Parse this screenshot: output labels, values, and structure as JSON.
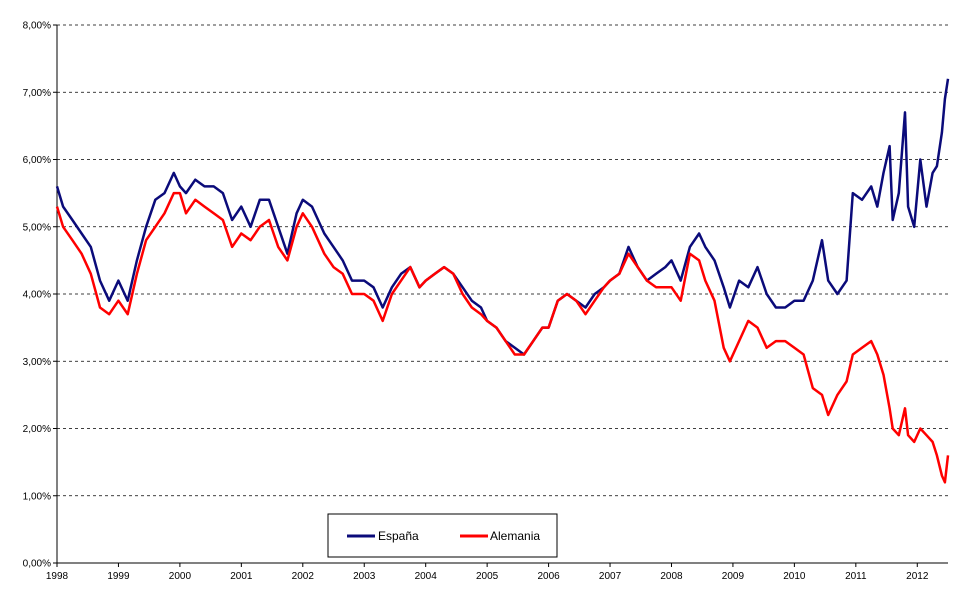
{
  "chart_data": {
    "type": "line",
    "title": "",
    "xlabel": "",
    "ylabel": "",
    "xlim": [
      1998,
      2012.5
    ],
    "ylim": [
      0,
      8
    ],
    "x_ticks": [
      "1998",
      "1999",
      "2000",
      "2001",
      "2002",
      "2003",
      "2004",
      "2005",
      "2006",
      "2007",
      "2008",
      "2009",
      "2010",
      "2011",
      "2012"
    ],
    "y_ticks": [
      "0,00%",
      "1,00%",
      "2,00%",
      "3,00%",
      "4,00%",
      "5,00%",
      "6,00%",
      "7,00%",
      "8,00%"
    ],
    "grid": "horizontal dashed",
    "legend": "bottom-center",
    "series": [
      {
        "name": "España",
        "color": "#0b0b7a",
        "x": [
          1998.0,
          1998.1,
          1998.25,
          1998.4,
          1998.55,
          1998.7,
          1998.85,
          1999.0,
          1999.15,
          1999.3,
          1999.45,
          1999.6,
          1999.75,
          1999.9,
          2000.0,
          2000.1,
          2000.25,
          2000.4,
          2000.55,
          2000.7,
          2000.85,
          2001.0,
          2001.15,
          2001.3,
          2001.45,
          2001.6,
          2001.75,
          2001.9,
          2002.0,
          2002.15,
          2002.35,
          2002.5,
          2002.65,
          2002.8,
          2003.0,
          2003.15,
          2003.3,
          2003.45,
          2003.6,
          2003.75,
          2003.9,
          2004.0,
          2004.15,
          2004.3,
          2004.45,
          2004.6,
          2004.75,
          2004.9,
          2005.0,
          2005.15,
          2005.3,
          2005.45,
          2005.6,
          2005.75,
          2005.9,
          2006.0,
          2006.15,
          2006.3,
          2006.45,
          2006.6,
          2006.75,
          2006.9,
          2007.0,
          2007.15,
          2007.3,
          2007.45,
          2007.6,
          2007.75,
          2007.9,
          2008.0,
          2008.15,
          2008.3,
          2008.45,
          2008.55,
          2008.7,
          2008.85,
          2008.95,
          2009.1,
          2009.25,
          2009.4,
          2009.55,
          2009.7,
          2009.85,
          2010.0,
          2010.15,
          2010.3,
          2010.45,
          2010.55,
          2010.7,
          2010.85,
          2010.95,
          2011.1,
          2011.25,
          2011.35,
          2011.45,
          2011.55,
          2011.6,
          2011.7,
          2011.8,
          2011.85,
          2011.95,
          2012.05,
          2012.15,
          2012.25,
          2012.32,
          2012.4,
          2012.45,
          2012.5
        ],
        "values": [
          5.6,
          5.3,
          5.1,
          4.9,
          4.7,
          4.2,
          3.9,
          4.2,
          3.9,
          4.5,
          5.0,
          5.4,
          5.5,
          5.8,
          5.6,
          5.5,
          5.7,
          5.6,
          5.6,
          5.5,
          5.1,
          5.3,
          5.0,
          5.4,
          5.4,
          5.0,
          4.6,
          5.2,
          5.4,
          5.3,
          4.9,
          4.7,
          4.5,
          4.2,
          4.2,
          4.1,
          3.8,
          4.1,
          4.3,
          4.4,
          4.1,
          4.2,
          4.3,
          4.4,
          4.3,
          4.1,
          3.9,
          3.8,
          3.6,
          3.5,
          3.3,
          3.2,
          3.1,
          3.3,
          3.5,
          3.5,
          3.9,
          4.0,
          3.9,
          3.8,
          4.0,
          4.1,
          4.2,
          4.3,
          4.7,
          4.4,
          4.2,
          4.3,
          4.4,
          4.5,
          4.2,
          4.7,
          4.9,
          4.7,
          4.5,
          4.1,
          3.8,
          4.2,
          4.1,
          4.4,
          4.0,
          3.8,
          3.8,
          3.9,
          3.9,
          4.2,
          4.8,
          4.2,
          4.0,
          4.2,
          5.5,
          5.4,
          5.6,
          5.3,
          5.8,
          6.2,
          5.1,
          5.5,
          6.7,
          5.3,
          5.0,
          6.0,
          5.3,
          5.8,
          5.9,
          6.4,
          6.9,
          7.2
        ]
      },
      {
        "name": "Alemania",
        "color": "#ff0000",
        "x": [
          1998.0,
          1998.1,
          1998.25,
          1998.4,
          1998.55,
          1998.7,
          1998.85,
          1999.0,
          1999.15,
          1999.3,
          1999.45,
          1999.6,
          1999.75,
          1999.9,
          2000.0,
          2000.1,
          2000.25,
          2000.4,
          2000.55,
          2000.7,
          2000.85,
          2001.0,
          2001.15,
          2001.3,
          2001.45,
          2001.6,
          2001.75,
          2001.9,
          2002.0,
          2002.15,
          2002.35,
          2002.5,
          2002.65,
          2002.8,
          2003.0,
          2003.15,
          2003.3,
          2003.45,
          2003.6,
          2003.75,
          2003.9,
          2004.0,
          2004.15,
          2004.3,
          2004.45,
          2004.6,
          2004.75,
          2004.9,
          2005.0,
          2005.15,
          2005.3,
          2005.45,
          2005.6,
          2005.75,
          2005.9,
          2006.0,
          2006.15,
          2006.3,
          2006.45,
          2006.6,
          2006.75,
          2006.9,
          2007.0,
          2007.15,
          2007.3,
          2007.45,
          2007.6,
          2007.75,
          2007.9,
          2008.0,
          2008.15,
          2008.3,
          2008.45,
          2008.55,
          2008.7,
          2008.85,
          2008.95,
          2009.1,
          2009.25,
          2009.4,
          2009.55,
          2009.7,
          2009.85,
          2010.0,
          2010.15,
          2010.3,
          2010.45,
          2010.55,
          2010.7,
          2010.85,
          2010.95,
          2011.1,
          2011.25,
          2011.35,
          2011.45,
          2011.55,
          2011.6,
          2011.7,
          2011.8,
          2011.85,
          2011.95,
          2012.05,
          2012.15,
          2012.25,
          2012.32,
          2012.4,
          2012.45,
          2012.5
        ],
        "values": [
          5.3,
          5.0,
          4.8,
          4.6,
          4.3,
          3.8,
          3.7,
          3.9,
          3.7,
          4.3,
          4.8,
          5.0,
          5.2,
          5.5,
          5.5,
          5.2,
          5.4,
          5.3,
          5.2,
          5.1,
          4.7,
          4.9,
          4.8,
          5.0,
          5.1,
          4.7,
          4.5,
          5.0,
          5.2,
          5.0,
          4.6,
          4.4,
          4.3,
          4.0,
          4.0,
          3.9,
          3.6,
          4.0,
          4.2,
          4.4,
          4.1,
          4.2,
          4.3,
          4.4,
          4.3,
          4.0,
          3.8,
          3.7,
          3.6,
          3.5,
          3.3,
          3.1,
          3.1,
          3.3,
          3.5,
          3.5,
          3.9,
          4.0,
          3.9,
          3.7,
          3.9,
          4.1,
          4.2,
          4.3,
          4.6,
          4.4,
          4.2,
          4.1,
          4.1,
          4.1,
          3.9,
          4.6,
          4.5,
          4.2,
          3.9,
          3.2,
          3.0,
          3.3,
          3.6,
          3.5,
          3.2,
          3.3,
          3.3,
          3.2,
          3.1,
          2.6,
          2.5,
          2.2,
          2.5,
          2.7,
          3.1,
          3.2,
          3.3,
          3.1,
          2.8,
          2.3,
          2.0,
          1.9,
          2.3,
          1.9,
          1.8,
          2.0,
          1.9,
          1.8,
          1.6,
          1.3,
          1.2,
          1.6
        ]
      }
    ]
  }
}
